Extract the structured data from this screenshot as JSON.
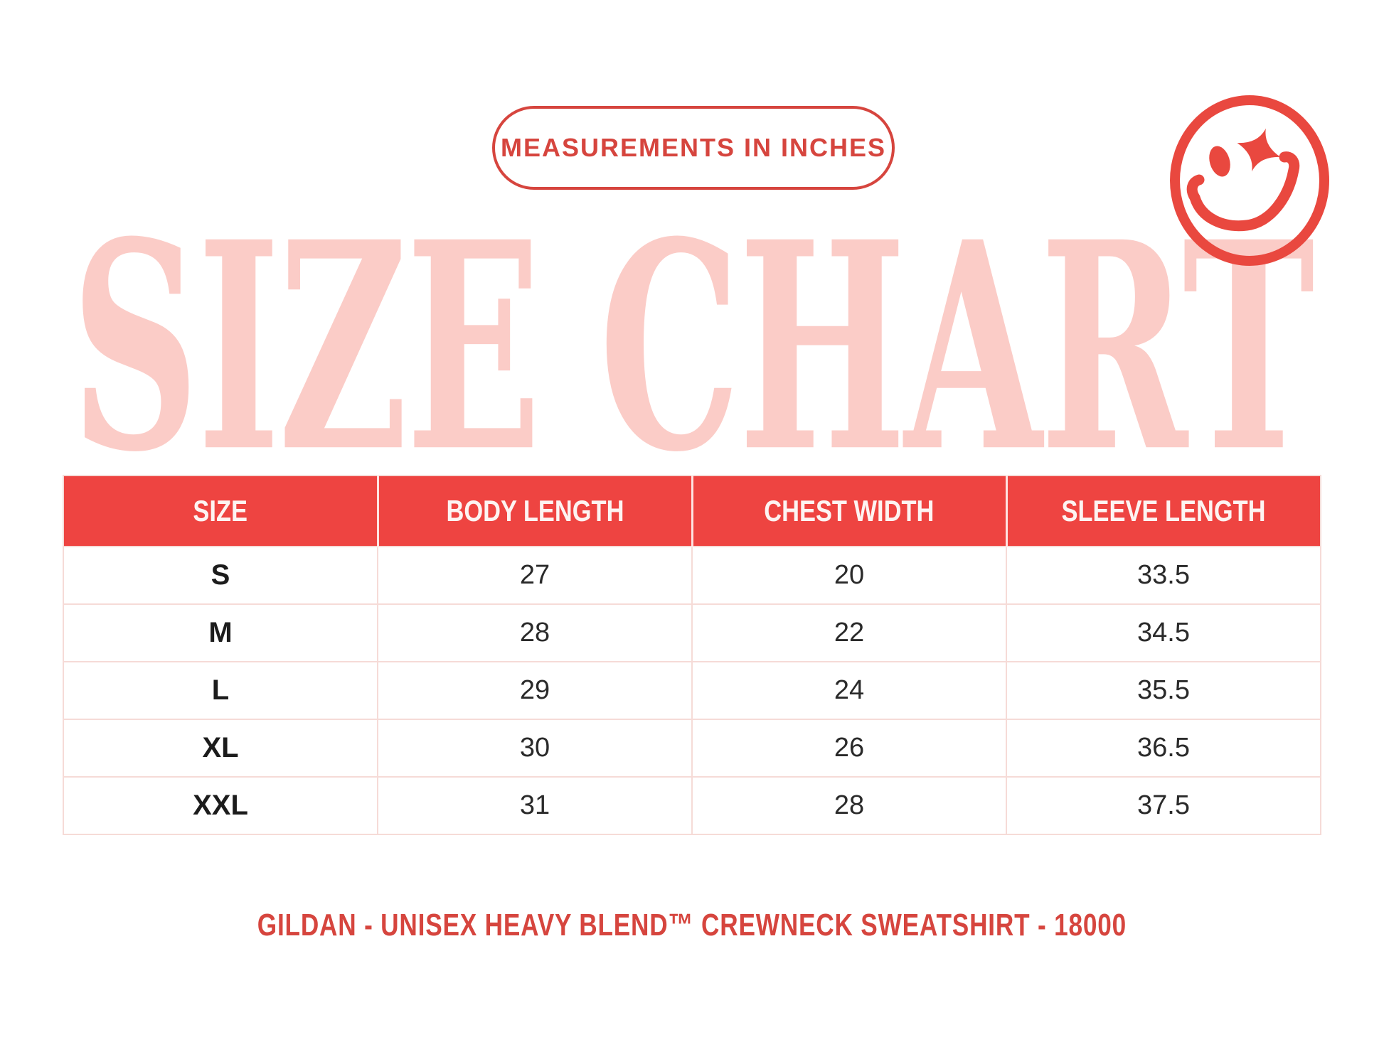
{
  "page": {
    "background": "#ffffff"
  },
  "badge": {
    "label": "MEASUREMENTS IN INCHES",
    "color": "#d6453e"
  },
  "title": {
    "text": "SIZE CHART",
    "color": "#fbccc7"
  },
  "smiley_icon": {
    "name": "winking-smiley-with-sparkle-eye",
    "color": "#e9483f"
  },
  "table": {
    "headers": [
      "SIZE",
      "BODY LENGTH",
      "CHEST WIDTH",
      "SLEEVE LENGTH"
    ],
    "rows": [
      [
        "S",
        "27",
        "20",
        "33.5"
      ],
      [
        "M",
        "28",
        "22",
        "34.5"
      ],
      [
        "L",
        "29",
        "24",
        "35.5"
      ],
      [
        "XL",
        "30",
        "26",
        "36.5"
      ],
      [
        "XXL",
        "31",
        "28",
        "37.5"
      ]
    ],
    "header_bg": "#ee4441",
    "header_text_color": "#fdf4f2",
    "border_color": "#f6dbd7",
    "body_text_color": "#2a2a2a"
  },
  "footer": {
    "text": "GILDAN - UNISEX HEAVY BLEND™ CREWNECK SWEATSHIRT - 18000",
    "color": "#d8443e"
  }
}
